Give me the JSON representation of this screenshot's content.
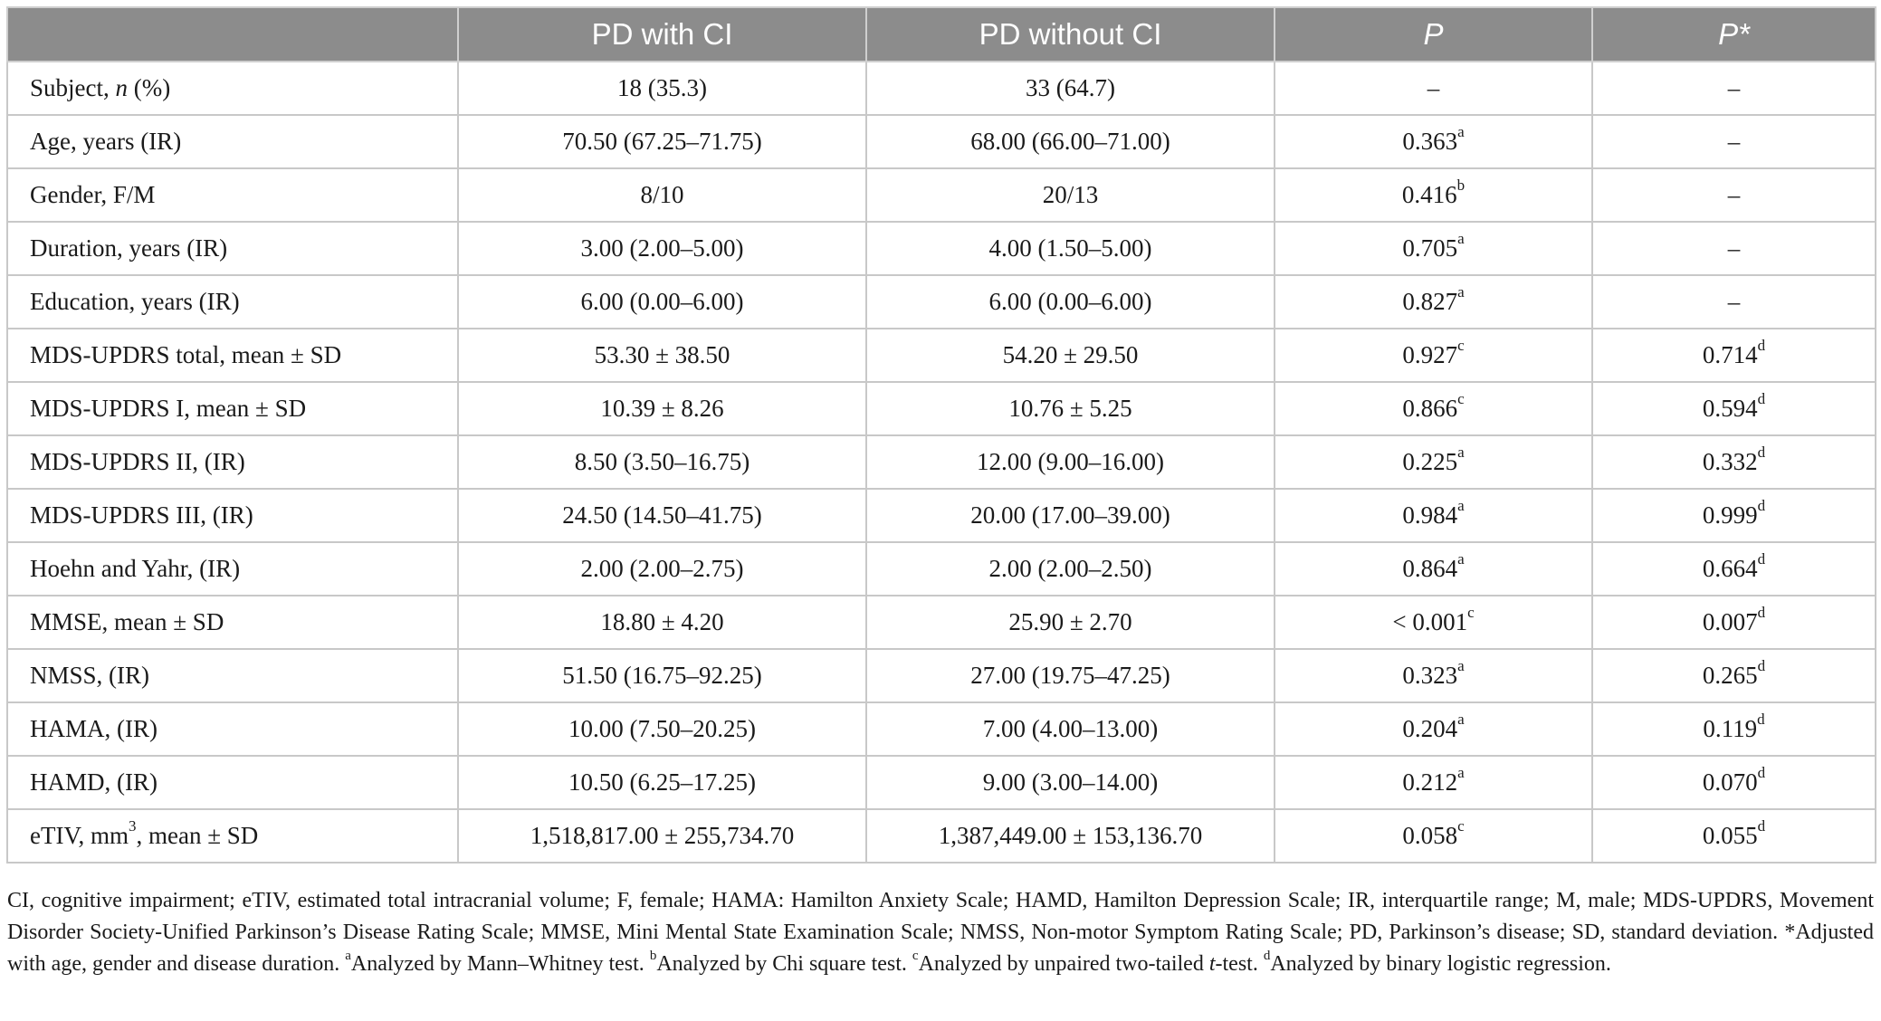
{
  "table": {
    "headers": [
      "",
      "PD with CI",
      "PD without CI",
      "P",
      "P*"
    ],
    "rows": [
      {
        "label_pre": "Subject, ",
        "label_it": "n",
        "label_post": " (%)",
        "label_sup": "",
        "label_tail": "",
        "with_ci": "18 (35.3)",
        "without_ci": "33 (64.7)",
        "p": "–",
        "p_sup": "",
        "p_adj": "–",
        "p_adj_sup": ""
      },
      {
        "label_pre": "Age, years (IR)",
        "label_it": "",
        "label_post": "",
        "label_sup": "",
        "label_tail": "",
        "with_ci": "70.50 (67.25–71.75)",
        "without_ci": "68.00 (66.00–71.00)",
        "p": "0.363",
        "p_sup": "a",
        "p_adj": "–",
        "p_adj_sup": ""
      },
      {
        "label_pre": "Gender, F/M",
        "label_it": "",
        "label_post": "",
        "label_sup": "",
        "label_tail": "",
        "with_ci": "8/10",
        "without_ci": "20/13",
        "p": "0.416",
        "p_sup": "b",
        "p_adj": "–",
        "p_adj_sup": ""
      },
      {
        "label_pre": "Duration, years (IR)",
        "label_it": "",
        "label_post": "",
        "label_sup": "",
        "label_tail": "",
        "with_ci": "3.00 (2.00–5.00)",
        "without_ci": "4.00 (1.50–5.00)",
        "p": "0.705",
        "p_sup": "a",
        "p_adj": "–",
        "p_adj_sup": ""
      },
      {
        "label_pre": "Education, years (IR)",
        "label_it": "",
        "label_post": "",
        "label_sup": "",
        "label_tail": "",
        "with_ci": "6.00 (0.00–6.00)",
        "without_ci": "6.00 (0.00–6.00)",
        "p": "0.827",
        "p_sup": "a",
        "p_adj": "–",
        "p_adj_sup": ""
      },
      {
        "label_pre": "MDS-UPDRS total, mean ± SD",
        "label_it": "",
        "label_post": "",
        "label_sup": "",
        "label_tail": "",
        "with_ci": "53.30 ± 38.50",
        "without_ci": "54.20 ± 29.50",
        "p": "0.927",
        "p_sup": "c",
        "p_adj": "0.714",
        "p_adj_sup": "d"
      },
      {
        "label_pre": "MDS-UPDRS I, mean ± SD",
        "label_it": "",
        "label_post": "",
        "label_sup": "",
        "label_tail": "",
        "with_ci": "10.39 ± 8.26",
        "without_ci": "10.76 ± 5.25",
        "p": "0.866",
        "p_sup": "c",
        "p_adj": "0.594",
        "p_adj_sup": "d"
      },
      {
        "label_pre": "MDS-UPDRS II, (IR)",
        "label_it": "",
        "label_post": "",
        "label_sup": "",
        "label_tail": "",
        "with_ci": "8.50 (3.50–16.75)",
        "without_ci": "12.00 (9.00–16.00)",
        "p": "0.225",
        "p_sup": "a",
        "p_adj": "0.332",
        "p_adj_sup": "d"
      },
      {
        "label_pre": "MDS-UPDRS III, (IR)",
        "label_it": "",
        "label_post": "",
        "label_sup": "",
        "label_tail": "",
        "with_ci": "24.50 (14.50–41.75)",
        "without_ci": "20.00 (17.00–39.00)",
        "p": "0.984",
        "p_sup": "a",
        "p_adj": "0.999",
        "p_adj_sup": "d"
      },
      {
        "label_pre": "Hoehn and Yahr, (IR)",
        "label_it": "",
        "label_post": "",
        "label_sup": "",
        "label_tail": "",
        "with_ci": "2.00 (2.00–2.75)",
        "without_ci": "2.00 (2.00–2.50)",
        "p": "0.864",
        "p_sup": "a",
        "p_adj": "0.664",
        "p_adj_sup": "d"
      },
      {
        "label_pre": "MMSE, mean ± SD",
        "label_it": "",
        "label_post": "",
        "label_sup": "",
        "label_tail": "",
        "with_ci": "18.80 ± 4.20",
        "without_ci": "25.90 ± 2.70",
        "p": "< 0.001",
        "p_sup": "c",
        "p_adj": "0.007",
        "p_adj_sup": "d"
      },
      {
        "label_pre": "NMSS, (IR)",
        "label_it": "",
        "label_post": "",
        "label_sup": "",
        "label_tail": "",
        "with_ci": "51.50 (16.75–92.25)",
        "without_ci": "27.00 (19.75–47.25)",
        "p": "0.323",
        "p_sup": "a",
        "p_adj": "0.265",
        "p_adj_sup": "d"
      },
      {
        "label_pre": "HAMA, (IR)",
        "label_it": "",
        "label_post": "",
        "label_sup": "",
        "label_tail": "",
        "with_ci": "10.00 (7.50–20.25)",
        "without_ci": "7.00 (4.00–13.00)",
        "p": "0.204",
        "p_sup": "a",
        "p_adj": "0.119",
        "p_adj_sup": "d"
      },
      {
        "label_pre": "HAMD, (IR)",
        "label_it": "",
        "label_post": "",
        "label_sup": "",
        "label_tail": "",
        "with_ci": "10.50 (6.25–17.25)",
        "without_ci": "9.00 (3.00–14.00)",
        "p": "0.212",
        "p_sup": "a",
        "p_adj": "0.070",
        "p_adj_sup": "d"
      },
      {
        "label_pre": "eTIV, mm",
        "label_it": "",
        "label_post": "",
        "label_sup": "3",
        "label_tail": ", mean ± SD",
        "with_ci": "1,518,817.00 ± 255,734.70",
        "without_ci": "1,387,449.00 ± 153,136.70",
        "p": "0.058",
        "p_sup": "c",
        "p_adj": "0.055",
        "p_adj_sup": "d"
      }
    ]
  },
  "footnote": {
    "abbrev": "CI, cognitive impairment; eTIV, estimated total intracranial volume; F, female; HAMA: Hamilton Anxiety Scale; HAMD, Hamilton Depression Scale; IR, interquartile range; M, male; MDS-UPDRS, Movement Disorder Society-Unified Parkinson’s Disease Rating Scale; MMSE, Mini Mental State Examination Scale; NMSS, Non-motor Symptom Rating Scale; PD, Parkinson’s disease; SD, standard deviation. ",
    "adjusted": "*Adjusted with age, gender and disease duration. ",
    "sup_a": "a",
    "note_a": "Analyzed by Mann–Whitney test. ",
    "sup_b": "b",
    "note_b": "Analyzed by Chi square test. ",
    "sup_c": "c",
    "note_c_pre": "Analyzed by unpaired two-tailed ",
    "note_c_it": "t",
    "note_c_post": "-test. ",
    "sup_d": "d",
    "note_d": "Analyzed by binary logistic regression."
  }
}
